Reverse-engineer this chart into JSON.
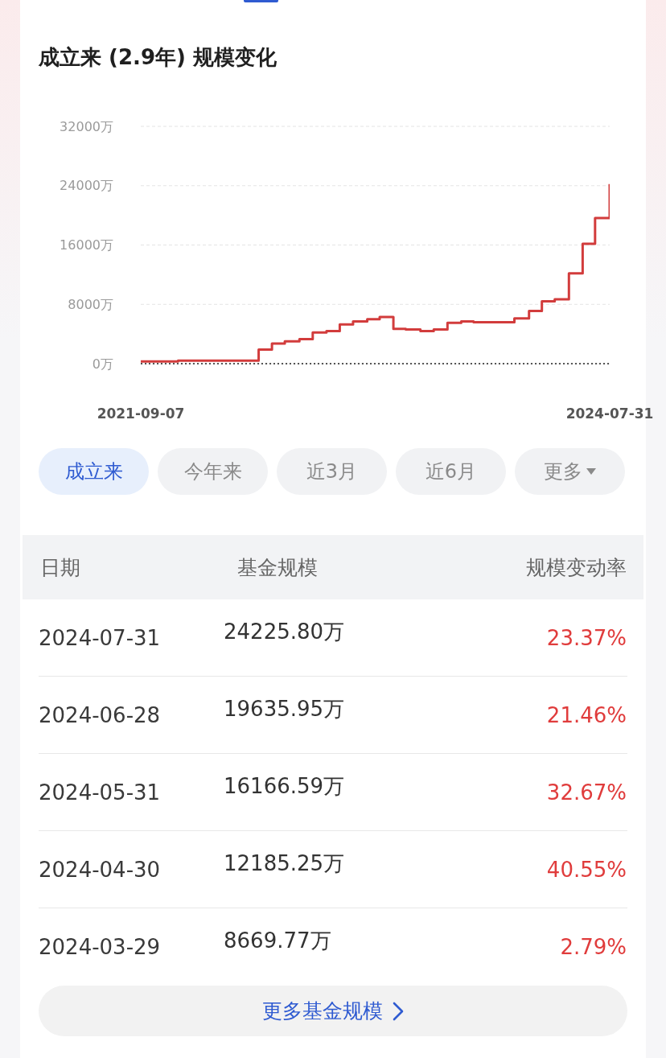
{
  "chart_data": [
    {
      "type": "step",
      "title": "成立来 (2.9年) 规模变化",
      "x": [
        "2021-09-07",
        "2021-11-30",
        "2022-02-28",
        "2022-05-31",
        "2022-06-30",
        "2022-07-29",
        "2022-08-31",
        "2022-09-30",
        "2022-10-31",
        "2022-11-30",
        "2022-12-30",
        "2023-01-31",
        "2023-02-28",
        "2023-03-31",
        "2023-04-28",
        "2023-05-31",
        "2023-06-30",
        "2023-07-31",
        "2023-08-31",
        "2023-09-28",
        "2023-10-31",
        "2023-11-30",
        "2023-12-29",
        "2024-01-31",
        "2024-02-29",
        "2024-03-29",
        "2024-04-30",
        "2024-05-31",
        "2024-06-28",
        "2024-07-31"
      ],
      "values": [
        300,
        400,
        400,
        1900,
        2700,
        3000,
        3300,
        4200,
        4400,
        5300,
        5700,
        6000,
        6300,
        4700,
        4600,
        4400,
        4600,
        5500,
        5700,
        5600,
        5600,
        5600,
        6100,
        7100,
        8400,
        8669.77,
        12185.25,
        16166.59,
        19635.95,
        24225.8
      ],
      "color": "#d23c3c",
      "xlim": [
        "2021-09-07",
        "2024-07-31"
      ],
      "xticks": [
        "2021-09-07",
        "2024-07-31"
      ],
      "ylim": [
        0,
        32000
      ],
      "yticks": [
        {
          "value": 0,
          "label": "0万"
        },
        {
          "value": 8000,
          "label": "8000万"
        },
        {
          "value": 16000,
          "label": "16000万"
        },
        {
          "value": 24000,
          "label": "24000万"
        },
        {
          "value": 32000,
          "label": "32000万"
        }
      ],
      "grid": "y",
      "annotations": [
        "成立来",
        "今年来",
        "近3月",
        "近6月",
        "更多"
      ]
    },
    {
      "type": "other",
      "xlabel": "日期",
      "categories": [
        "2024-07-31",
        "2024-06-28",
        "2024-05-31",
        "2024-04-30",
        "2024-03-29"
      ],
      "series": [
        {
          "name": "基金规模",
          "values": [
            24225.8,
            19635.95,
            16166.59,
            12185.25,
            8669.77
          ],
          "value_labels": [
            "24225.80万",
            "19635.95万",
            "16166.59万",
            "12185.25万",
            "8669.77万"
          ]
        },
        {
          "name": "规模变动率",
          "values": [
            23.37,
            21.46,
            32.67,
            40.55,
            2.79
          ],
          "value_labels": [
            "23.37%",
            "21.46%",
            "32.67%",
            "40.55%",
            "2.79%"
          ]
        }
      ],
      "annotations": [
        "更多基金规模"
      ]
    }
  ]
}
